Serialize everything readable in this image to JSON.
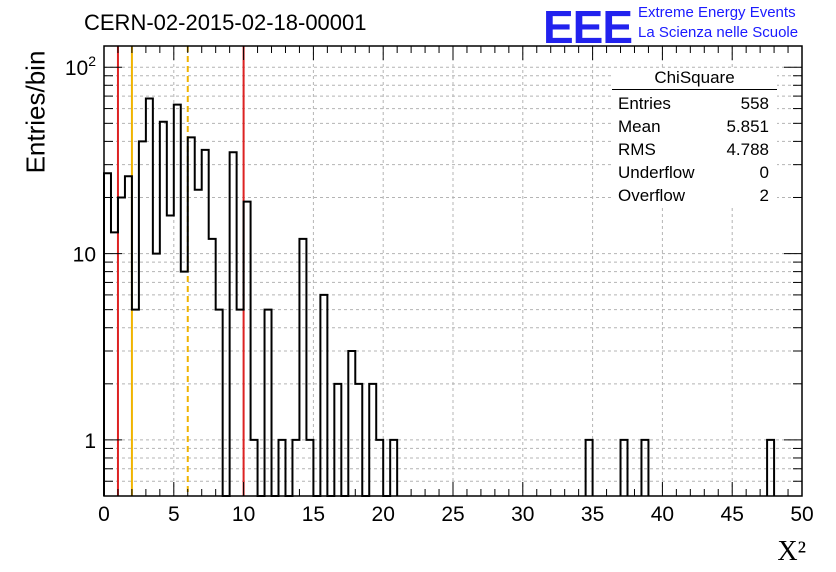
{
  "header": {
    "title": "CERN-02-2015-02-18-00001"
  },
  "brand": {
    "logo_text": "EEE",
    "line1": "Extreme Energy Events",
    "line2": "La Scienza nelle Scuole",
    "color": "#1a1aff"
  },
  "stats_box": {
    "title": "ChiSquare",
    "rows": [
      {
        "label": "Entries",
        "value": "558"
      },
      {
        "label": "Mean",
        "value": "5.851"
      },
      {
        "label": "RMS",
        "value": "4.788"
      },
      {
        "label": "Underflow",
        "value": "0"
      },
      {
        "label": "Overflow",
        "value": "2"
      }
    ]
  },
  "chart_data": {
    "type": "bar",
    "style": "step-histogram",
    "title": "CERN-02-2015-02-18-00001",
    "xlabel": "X²",
    "ylabel": "Entries/bin",
    "xlim": [
      0,
      50
    ],
    "ylim": [
      0.5,
      130
    ],
    "y_scale": "log",
    "grid": true,
    "bin_width": 0.5,
    "x_ticks": [
      0,
      5,
      10,
      15,
      20,
      25,
      30,
      35,
      40,
      45,
      50
    ],
    "x_tick_labels": [
      "0",
      "5",
      "10",
      "15",
      "20",
      "25",
      "30",
      "35",
      "40",
      "45",
      "50"
    ],
    "y_ticks": [
      1,
      10,
      100
    ],
    "y_tick_labels": [
      "1",
      "10",
      "10²"
    ],
    "bins_start": 0,
    "counts": [
      27,
      13,
      20,
      26,
      5,
      40,
      68,
      10,
      51,
      16,
      63,
      8,
      42,
      22,
      36,
      12,
      5,
      0,
      35,
      5,
      19,
      1,
      0,
      5,
      0,
      1,
      0,
      1,
      12,
      1,
      0,
      6,
      0,
      2,
      0,
      3,
      2,
      0,
      2,
      1,
      0,
      1
    ],
    "extra_bins": [
      {
        "x": 34.5,
        "count": 1
      },
      {
        "x": 37.0,
        "count": 1
      },
      {
        "x": 38.5,
        "count": 1
      },
      {
        "x": 47.5,
        "count": 1
      }
    ],
    "series_color": "#000000",
    "vertical_lines": [
      {
        "x": 1,
        "color": "#dd2222",
        "style": "solid"
      },
      {
        "x": 2,
        "color": "#f0b400",
        "style": "solid"
      },
      {
        "x": 6,
        "color": "#f0b400",
        "style": "dashed"
      },
      {
        "x": 10,
        "color": "#dd2222",
        "style": "solid"
      }
    ]
  }
}
